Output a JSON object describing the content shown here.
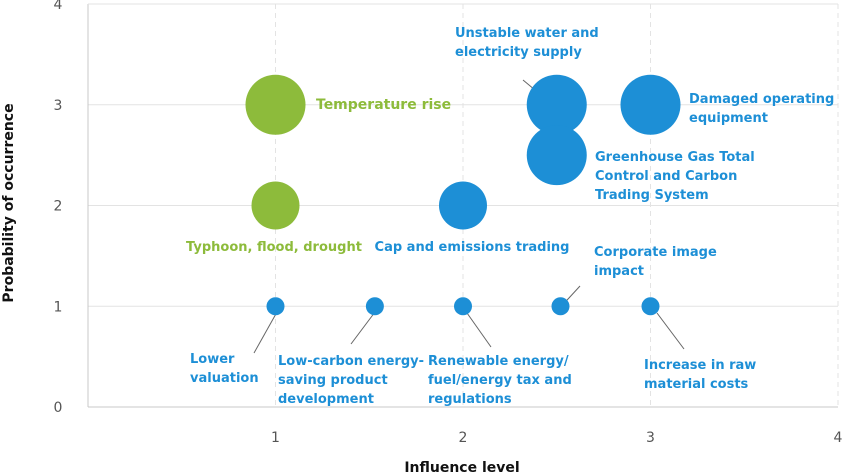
{
  "chart_data": {
    "type": "scatter",
    "xlabel": "Influence level",
    "ylabel": "Probability of occurrence",
    "xlim": [
      0,
      4
    ],
    "ylim": [
      0,
      4
    ],
    "x_ticks": [
      "1",
      "2",
      "3",
      "4"
    ],
    "y_ticks": [
      "0",
      "1",
      "2",
      "3",
      "4"
    ],
    "grid": true,
    "colors": {
      "green": "#8dbb3b",
      "blue": "#1d8fd6",
      "grid": "#e3e3e3",
      "axis": "#c8c8c8"
    },
    "points": [
      {
        "label": "Temperature rise",
        "x": 1.0,
        "y": 3.0,
        "size": "large",
        "color": "green"
      },
      {
        "label": "Typhoon, flood, drought",
        "x": 1.0,
        "y": 2.0,
        "size": "medium",
        "color": "green"
      },
      {
        "label": "Unstable water and electricity supply",
        "x": 2.5,
        "y": 3.0,
        "size": "large",
        "color": "blue"
      },
      {
        "label": "Damaged operating equipment",
        "x": 3.0,
        "y": 3.0,
        "size": "large",
        "color": "blue"
      },
      {
        "label": "Greenhouse Gas Total Control and Carbon Trading System",
        "x": 2.5,
        "y": 2.5,
        "size": "large",
        "color": "blue"
      },
      {
        "label": "Cap and emissions trading",
        "x": 2.0,
        "y": 2.0,
        "size": "medium",
        "color": "blue"
      },
      {
        "label": "Lower valuation",
        "x": 1.0,
        "y": 1.0,
        "size": "small",
        "color": "blue"
      },
      {
        "label": "Low-carbon energy-saving product development",
        "x": 1.53,
        "y": 1.0,
        "size": "small",
        "color": "blue"
      },
      {
        "label": "Renewable energy/fuel/energy tax and regulations",
        "x": 2.0,
        "y": 1.0,
        "size": "small",
        "color": "blue"
      },
      {
        "label": "Corporate image impact",
        "x": 2.52,
        "y": 1.0,
        "size": "small",
        "color": "blue"
      },
      {
        "label": "Increase in raw material costs",
        "x": 3.0,
        "y": 1.0,
        "size": "small",
        "color": "blue"
      }
    ],
    "point_labels": [
      [
        "Temperature rise"
      ],
      [
        "Typhoon, flood, drought"
      ],
      [
        "Unstable water and",
        "electricity supply"
      ],
      [
        "Damaged operating",
        "equipment"
      ],
      [
        "Greenhouse Gas Total",
        "Control and  Carbon",
        "Trading System"
      ],
      [
        "Cap and emissions trading"
      ],
      [
        "Lower",
        "valuation"
      ],
      [
        "Low-carbon energy-",
        "saving product",
        "development"
      ],
      [
        "Renewable energy/",
        "fuel/energy tax and",
        "regulations"
      ],
      [
        "Corporate image",
        "impact"
      ],
      [
        "Increase in raw",
        "material costs"
      ]
    ]
  }
}
